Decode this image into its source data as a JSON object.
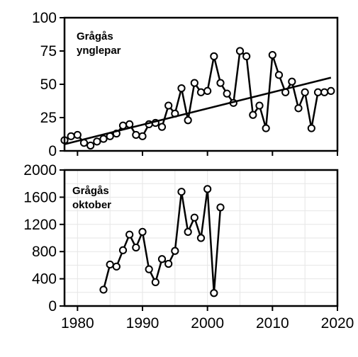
{
  "chart_data": [
    {
      "type": "line",
      "labels": [
        "Grågås",
        "ynglepar"
      ],
      "xlim": [
        1978,
        2020
      ],
      "ylim": [
        0,
        100
      ],
      "y_ticks": [
        0,
        25,
        50,
        75,
        100
      ],
      "x_tick_labels": [],
      "grid": false,
      "series": [
        {
          "x": [
            1978,
            1979,
            1980,
            1981,
            1982,
            1983,
            1984,
            1985,
            1986,
            1987,
            1988,
            1989,
            1990,
            1991,
            1992,
            1993,
            1994,
            1995,
            1996,
            1997,
            1998,
            1999,
            2000,
            2001,
            2002,
            2003,
            2004,
            2005,
            2006,
            2007,
            2008,
            2009,
            2010,
            2011,
            2012,
            2013,
            2014,
            2015,
            2016,
            2017,
            2018,
            2019
          ],
          "values": [
            8,
            11,
            12,
            6,
            4,
            7,
            9,
            11,
            13,
            19,
            20,
            12,
            11,
            20,
            21,
            18,
            34,
            28,
            47,
            23,
            51,
            44,
            45,
            71,
            51,
            43,
            36,
            75,
            71,
            27,
            34,
            17,
            72,
            57,
            44,
            52,
            32,
            44,
            17,
            44,
            44,
            45
          ]
        },
        {
          "type": "trend",
          "x": [
            1978,
            2019
          ],
          "values": [
            5,
            55
          ]
        }
      ]
    },
    {
      "type": "line",
      "labels": [
        "Grågås",
        "oktober"
      ],
      "xlim": [
        1978,
        2020
      ],
      "ylim": [
        0,
        2000
      ],
      "y_ticks": [
        0,
        400,
        800,
        1200,
        1600,
        2000
      ],
      "x_tick_labels": [
        "1980",
        "1990",
        "2000",
        "2010",
        "2020"
      ],
      "grid": true,
      "series": [
        {
          "x": [
            1984,
            1985,
            1986,
            1987,
            1988,
            1989,
            1990,
            1991,
            1992,
            1993,
            1994,
            1995,
            1996,
            1997,
            1998,
            1999,
            2000,
            2001,
            2002
          ],
          "values": [
            240,
            610,
            580,
            820,
            1050,
            860,
            1090,
            540,
            350,
            690,
            620,
            810,
            1680,
            1090,
            1300,
            1000,
            1720,
            190,
            1450
          ]
        }
      ]
    }
  ]
}
